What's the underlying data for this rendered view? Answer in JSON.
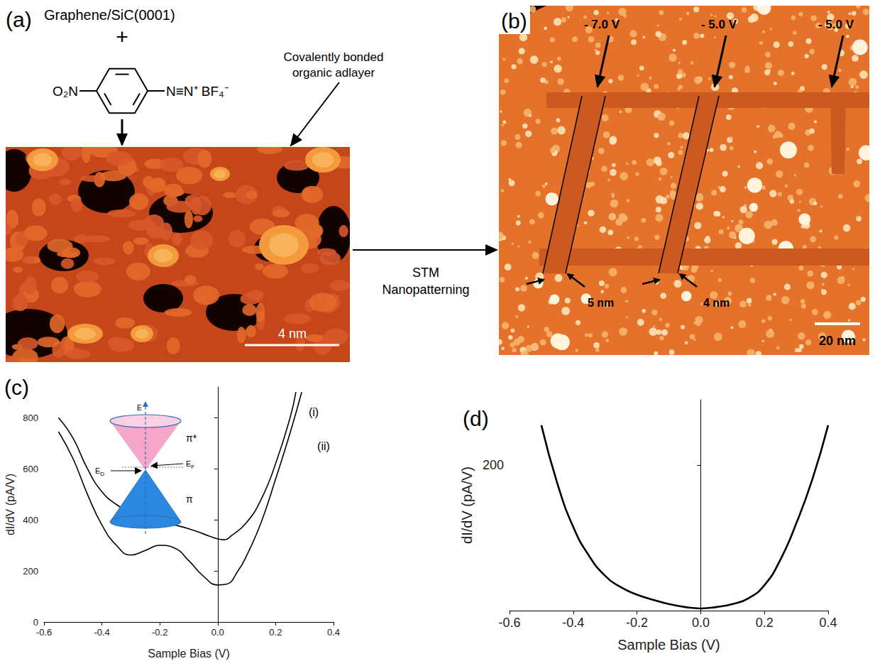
{
  "panel_a": {
    "letter": "(a)",
    "substrate": "Graphene/SiC(0001)",
    "plus": "+",
    "left_group": "O₂N",
    "right_group": "N≡N⁺ BF₄⁻",
    "annotation": "Covalently bonded organic adlayer",
    "scale_bar": "4 nm"
  },
  "arrow_label": "STM Nanopatterning",
  "panel_b": {
    "letter": "(b)",
    "biases": [
      "- 7.0 V",
      "- 5.0 V",
      "- 5.0 V"
    ],
    "widths": [
      "5 nm",
      "4 nm"
    ],
    "scale_bar": "20 nm"
  },
  "chart_data": [
    {
      "letter": "(c)",
      "type": "line",
      "x_label": "Sample Bias (V)",
      "y_label": "dI/dV (pA/V)",
      "xlim": [
        -0.6,
        0.4
      ],
      "xticks": [
        -0.6,
        -0.4,
        -0.2,
        {
          "value": 0,
          "label": "0.0"
        },
        0.2,
        0.4
      ],
      "ylim": [
        0,
        920
      ],
      "yticks": [
        0,
        200,
        400,
        600,
        800
      ],
      "grid": false,
      "series": [
        {
          "name": "(i)",
          "color": "#000000",
          "x": [
            -0.55,
            -0.5,
            -0.45,
            -0.4,
            -0.35,
            -0.3,
            -0.25,
            -0.2,
            -0.15,
            -0.1,
            -0.05,
            0,
            0.02,
            0.05,
            0.1,
            0.15,
            0.2,
            0.25,
            0.27
          ],
          "values": [
            800,
            720,
            600,
            510,
            460,
            430,
            415,
            395,
            380,
            365,
            345,
            325,
            322,
            340,
            390,
            480,
            620,
            800,
            900
          ]
        },
        {
          "name": "(ii)",
          "color": "#000000",
          "x": [
            -0.55,
            -0.5,
            -0.45,
            -0.4,
            -0.35,
            -0.3,
            -0.25,
            -0.2,
            -0.15,
            -0.1,
            -0.05,
            0,
            0.03,
            0.07,
            0.1,
            0.15,
            0.2,
            0.25,
            0.29
          ],
          "values": [
            745,
            640,
            500,
            380,
            300,
            262,
            280,
            300,
            290,
            240,
            180,
            145,
            148,
            200,
            260,
            390,
            560,
            740,
            900
          ]
        }
      ],
      "inset": {
        "axis": "E",
        "upper": "π*",
        "lower": "π",
        "dirac": {
          "base": "E",
          "sub": "D"
        },
        "fermi": {
          "base": "E",
          "sub": "F"
        }
      }
    },
    {
      "letter": "(d)",
      "type": "line",
      "x_label": "Sample Bias (V)",
      "y_label": "dI/dV (pA/V)",
      "xlim": [
        -0.6,
        0.4
      ],
      "xticks": [
        -0.6,
        -0.4,
        -0.2,
        {
          "value": 0,
          "label": "0.0"
        },
        0.2,
        0.4
      ],
      "ylim": [
        0,
        290
      ],
      "yticks": [
        200
      ],
      "grid": false,
      "series": [
        {
          "color": "#000000",
          "x": [
            -0.5,
            -0.45,
            -0.4,
            -0.35,
            -0.3,
            -0.25,
            -0.2,
            -0.15,
            -0.1,
            -0.05,
            0,
            0.05,
            0.1,
            0.15,
            0.2,
            0.25,
            0.3,
            0.35,
            0.4
          ],
          "values": [
            255,
            175,
            115,
            75,
            48,
            32,
            22,
            15,
            9,
            5,
            3,
            5,
            9,
            17,
            35,
            70,
            120,
            180,
            255
          ]
        }
      ]
    }
  ]
}
